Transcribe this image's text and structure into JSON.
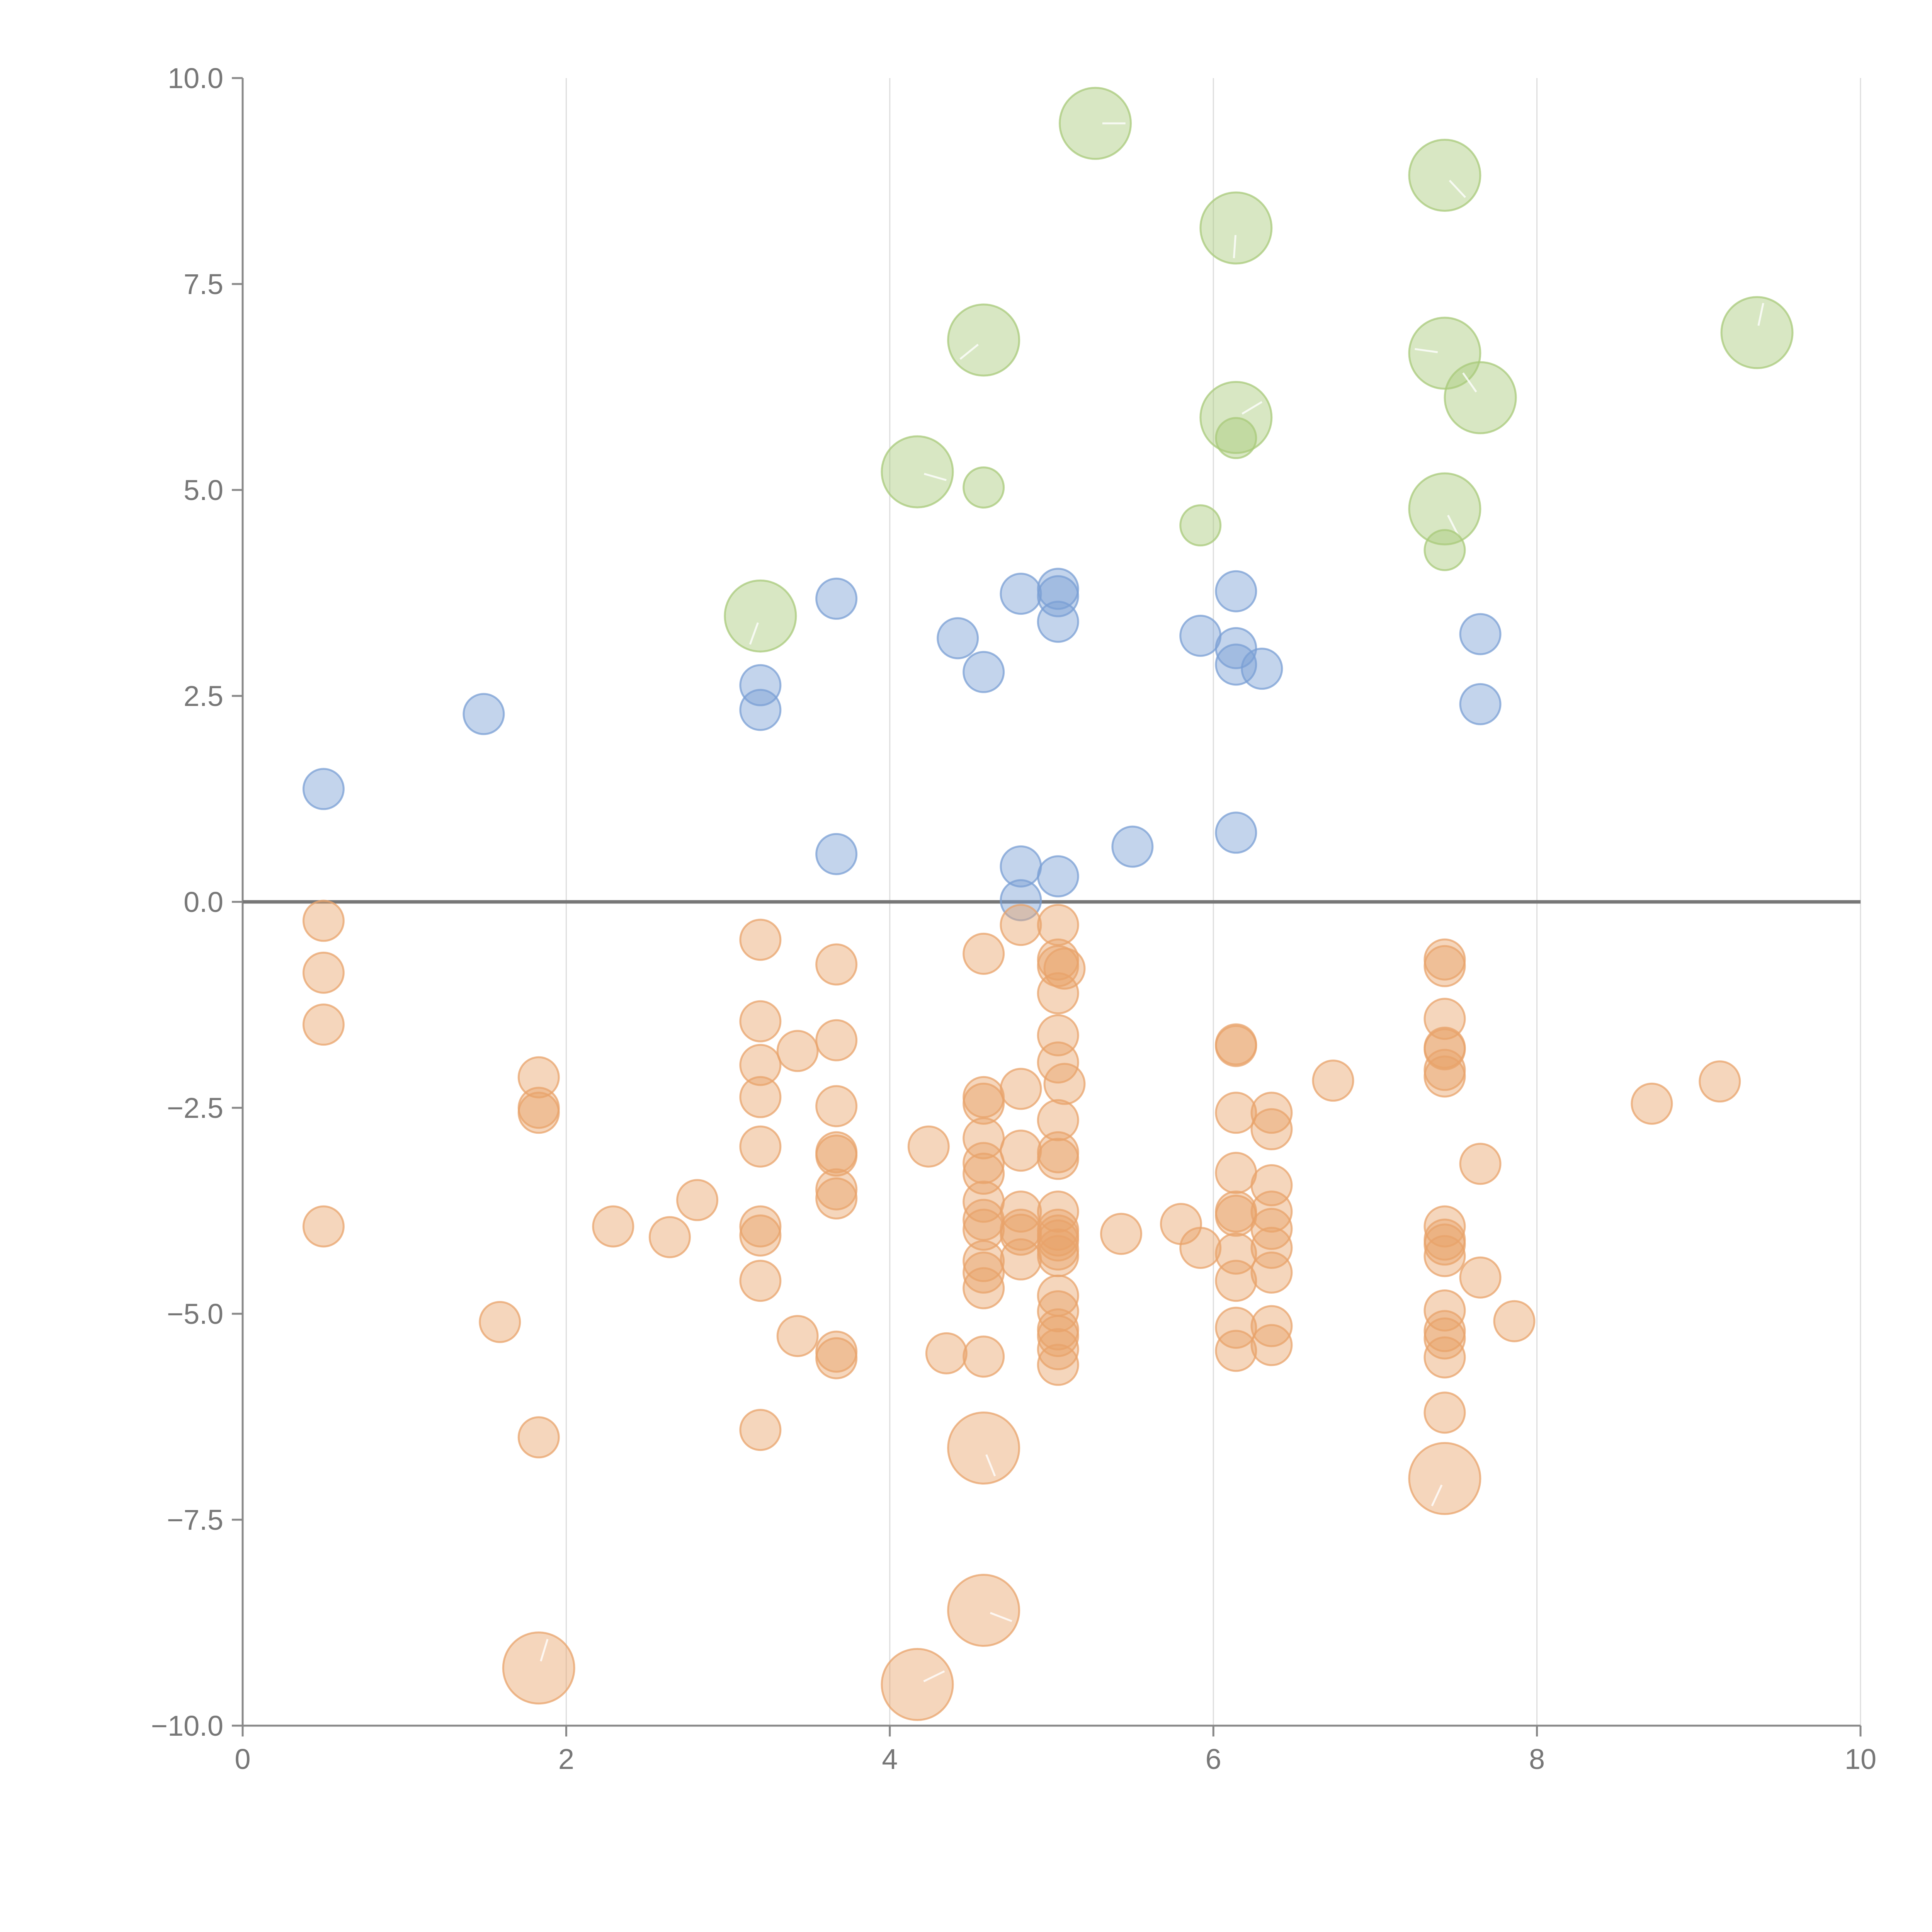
{
  "chart_data": {
    "type": "scatter",
    "title": "",
    "xlabel": "",
    "ylabel": "",
    "xlim": [
      0,
      10
    ],
    "ylim": [
      -10,
      10
    ],
    "x_ticks": [
      0,
      2,
      4,
      6,
      8,
      10
    ],
    "x_tick_labels": [
      "0",
      "2",
      "4",
      "6",
      "8",
      "10"
    ],
    "y_ticks": [
      10,
      7.5,
      5,
      2.5,
      0,
      -2.5,
      -5,
      -7.5,
      -10
    ],
    "y_tick_labels": [
      "10.0",
      "7.5",
      "5.0",
      "2.5",
      "0.0",
      "−2.5",
      "−5.0",
      "−7.5",
      "−10.0"
    ],
    "vertical_gridlines": true,
    "zero_line": true,
    "series": [
      {
        "name": "positive-small",
        "color": "#7a9fd4",
        "points": [
          [
            0.5,
            1.37,
            1
          ],
          [
            1.49,
            2.28,
            1
          ],
          [
            3.2,
            2.63,
            1
          ],
          [
            3.2,
            2.33,
            1
          ],
          [
            3.67,
            3.68,
            1
          ],
          [
            3.67,
            0.58,
            1
          ],
          [
            4.42,
            3.2,
            1
          ],
          [
            4.58,
            2.79,
            1
          ],
          [
            4.81,
            3.74,
            1
          ],
          [
            5.04,
            3.8,
            1
          ],
          [
            5.04,
            3.71,
            1
          ],
          [
            5.04,
            3.4,
            1
          ],
          [
            4.81,
            0.43,
            1
          ],
          [
            4.81,
            0.02,
            1
          ],
          [
            5.04,
            0.31,
            1
          ],
          [
            5.5,
            0.67,
            1
          ],
          [
            5.92,
            3.23,
            1
          ],
          [
            6.14,
            3.77,
            1
          ],
          [
            6.14,
            3.08,
            1
          ],
          [
            6.14,
            2.88,
            1
          ],
          [
            6.3,
            2.83,
            1
          ],
          [
            6.14,
            0.84,
            1
          ],
          [
            7.65,
            3.25,
            1
          ],
          [
            7.65,
            2.4,
            1
          ]
        ]
      },
      {
        "name": "positive-large",
        "color": "#a8c97a",
        "points": [
          [
            5.27,
            9.45,
            2
          ],
          [
            7.43,
            8.82,
            2
          ],
          [
            6.14,
            8.18,
            2
          ],
          [
            4.58,
            6.82,
            2
          ],
          [
            7.43,
            6.66,
            2
          ],
          [
            7.65,
            6.12,
            2
          ],
          [
            9.36,
            6.91,
            2
          ],
          [
            6.14,
            5.88,
            2
          ],
          [
            4.17,
            5.22,
            2
          ],
          [
            7.43,
            4.77,
            2
          ],
          [
            3.2,
            3.47,
            2
          ],
          [
            6.14,
            5.63,
            1
          ],
          [
            4.58,
            5.03,
            1
          ],
          [
            5.92,
            4.57,
            1
          ],
          [
            7.43,
            4.27,
            1
          ]
        ]
      },
      {
        "name": "negative",
        "color": "#e8a36b",
        "points": [
          [
            0.5,
            -0.23,
            1
          ],
          [
            0.5,
            -0.86,
            1
          ],
          [
            0.5,
            -1.49,
            1
          ],
          [
            0.5,
            -3.94,
            1
          ],
          [
            1.59,
            -5.1,
            1
          ],
          [
            1.83,
            -2.13,
            1
          ],
          [
            1.83,
            -2.5,
            1
          ],
          [
            1.83,
            -2.56,
            1
          ],
          [
            1.83,
            -6.5,
            1
          ],
          [
            2.29,
            -3.94,
            1
          ],
          [
            2.64,
            -4.07,
            1
          ],
          [
            2.81,
            -3.62,
            1
          ],
          [
            3.2,
            -0.46,
            1
          ],
          [
            3.2,
            -1.45,
            1
          ],
          [
            3.2,
            -1.98,
            1
          ],
          [
            3.2,
            -2.37,
            1
          ],
          [
            3.2,
            -2.97,
            1
          ],
          [
            3.2,
            -3.94,
            1
          ],
          [
            3.2,
            -4.05,
            1
          ],
          [
            3.2,
            -4.6,
            1
          ],
          [
            3.2,
            -6.41,
            1
          ],
          [
            3.43,
            -1.81,
            1
          ],
          [
            3.43,
            -5.27,
            1
          ],
          [
            3.67,
            -0.76,
            1
          ],
          [
            3.67,
            -1.68,
            1
          ],
          [
            3.67,
            -2.48,
            1
          ],
          [
            3.67,
            -3.04,
            1
          ],
          [
            3.67,
            -3.08,
            1
          ],
          [
            3.67,
            -3.49,
            1
          ],
          [
            3.67,
            -3.6,
            1
          ],
          [
            3.67,
            -5.46,
            1
          ],
          [
            3.67,
            -5.54,
            1
          ],
          [
            4.24,
            -2.97,
            1
          ],
          [
            4.35,
            -5.48,
            1
          ],
          [
            4.58,
            -0.63,
            1
          ],
          [
            4.58,
            -2.37,
            1
          ],
          [
            4.58,
            -2.45,
            1
          ],
          [
            4.58,
            -2.87,
            1
          ],
          [
            4.58,
            -3.17,
            1
          ],
          [
            4.58,
            -3.3,
            1
          ],
          [
            4.58,
            -3.64,
            1
          ],
          [
            4.58,
            -3.86,
            1
          ],
          [
            4.58,
            -3.98,
            1
          ],
          [
            4.58,
            -4.36,
            1
          ],
          [
            4.58,
            -4.5,
            1
          ],
          [
            4.58,
            -4.69,
            1
          ],
          [
            4.58,
            -5.52,
            1
          ],
          [
            4.81,
            -0.28,
            1
          ],
          [
            4.81,
            -2.27,
            1
          ],
          [
            4.81,
            -3.02,
            1
          ],
          [
            4.81,
            -3.76,
            1
          ],
          [
            4.81,
            -3.98,
            1
          ],
          [
            4.81,
            -4.04,
            1
          ],
          [
            4.81,
            -4.34,
            1
          ],
          [
            5.04,
            -0.28,
            1
          ],
          [
            5.04,
            -0.7,
            1
          ],
          [
            5.04,
            -0.78,
            1
          ],
          [
            5.04,
            -1.11,
            1
          ],
          [
            5.04,
            -1.62,
            1
          ],
          [
            5.04,
            -1.95,
            1
          ],
          [
            5.04,
            -2.65,
            1
          ],
          [
            5.04,
            -3.04,
            1
          ],
          [
            5.04,
            -3.12,
            1
          ],
          [
            5.04,
            -3.76,
            1
          ],
          [
            5.04,
            -3.98,
            1
          ],
          [
            5.04,
            -4.05,
            1
          ],
          [
            5.04,
            -4.11,
            1
          ],
          [
            5.04,
            -4.22,
            1
          ],
          [
            5.04,
            -4.3,
            1
          ],
          [
            5.04,
            -4.78,
            1
          ],
          [
            5.04,
            -4.97,
            1
          ],
          [
            5.04,
            -5.19,
            1
          ],
          [
            5.04,
            -5.27,
            1
          ],
          [
            5.04,
            -5.43,
            1
          ],
          [
            5.04,
            -5.62,
            1
          ],
          [
            5.08,
            -0.81,
            1
          ],
          [
            5.08,
            -2.21,
            1
          ],
          [
            5.43,
            -4.03,
            1
          ],
          [
            5.8,
            -3.91,
            1
          ],
          [
            5.92,
            -4.2,
            1
          ],
          [
            6.14,
            -1.73,
            1
          ],
          [
            6.14,
            -1.75,
            1
          ],
          [
            6.14,
            -2.56,
            1
          ],
          [
            6.14,
            -3.29,
            1
          ],
          [
            6.14,
            -3.76,
            1
          ],
          [
            6.14,
            -3.81,
            1
          ],
          [
            6.14,
            -4.27,
            1
          ],
          [
            6.14,
            -4.6,
            1
          ],
          [
            6.14,
            -5.17,
            1
          ],
          [
            6.14,
            -5.45,
            1
          ],
          [
            6.36,
            -2.56,
            1
          ],
          [
            6.36,
            -2.76,
            1
          ],
          [
            6.36,
            -3.44,
            1
          ],
          [
            6.36,
            -3.76,
            1
          ],
          [
            6.36,
            -3.97,
            1
          ],
          [
            6.36,
            -4.2,
            1
          ],
          [
            6.36,
            -4.5,
            1
          ],
          [
            6.36,
            -5.15,
            1
          ],
          [
            6.36,
            -5.38,
            1
          ],
          [
            6.74,
            -2.17,
            1
          ],
          [
            7.43,
            -0.7,
            1
          ],
          [
            7.43,
            -0.78,
            1
          ],
          [
            7.43,
            -1.42,
            1
          ],
          [
            7.43,
            -1.77,
            1
          ],
          [
            7.43,
            -1.79,
            1
          ],
          [
            7.43,
            -2.04,
            1
          ],
          [
            7.43,
            -2.12,
            1
          ],
          [
            7.43,
            -3.94,
            1
          ],
          [
            7.43,
            -4.1,
            1
          ],
          [
            7.43,
            -4.16,
            1
          ],
          [
            7.43,
            -4.3,
            1
          ],
          [
            7.43,
            -4.96,
            1
          ],
          [
            7.43,
            -5.21,
            1
          ],
          [
            7.43,
            -5.3,
            1
          ],
          [
            7.43,
            -5.53,
            1
          ],
          [
            7.43,
            -6.2,
            1
          ],
          [
            7.65,
            -3.18,
            1
          ],
          [
            7.65,
            -4.56,
            1
          ],
          [
            7.86,
            -5.09,
            1
          ],
          [
            8.71,
            -2.45,
            1
          ],
          [
            9.13,
            -2.18,
            1
          ],
          [
            1.83,
            -9.3,
            2
          ],
          [
            4.17,
            -9.5,
            2
          ],
          [
            4.58,
            -8.6,
            2
          ],
          [
            4.58,
            -6.63,
            2
          ],
          [
            7.43,
            -7.0,
            2
          ]
        ]
      }
    ]
  }
}
